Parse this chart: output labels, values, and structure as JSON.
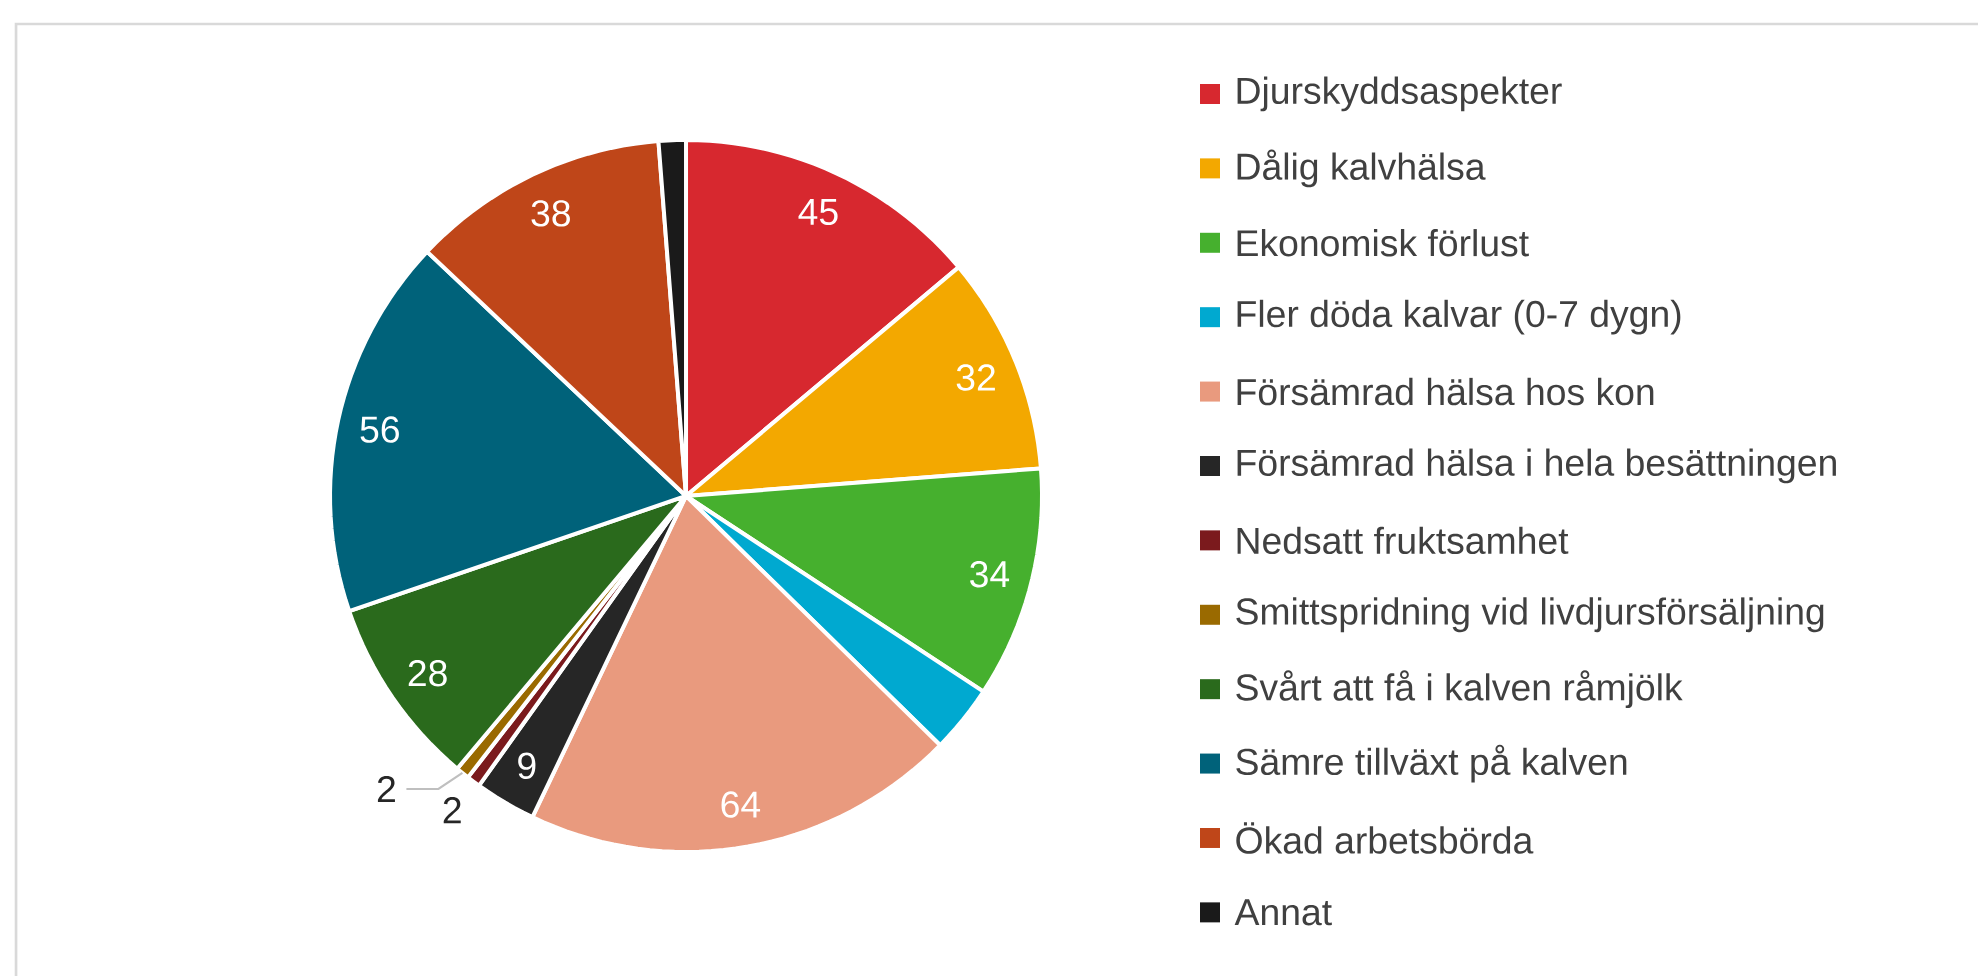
{
  "chart_data": {
    "type": "pie",
    "categories": [
      "Djurskyddsaspekter",
      "Dålig kalvhälsa",
      "Ekonomisk förlust",
      "Fler döda kalvar (0-7 dygn)",
      "Försämrad hälsa hos kon",
      "Försämrad hälsa i hela besättningen",
      "Nedsatt fruktsamhet",
      "Smittspridning vid livdjursförsäljning",
      "Svårt att få i kalven råmjölk",
      "Sämre tillväxt på kalven",
      "Ökad arbetsbörda",
      "Annat"
    ],
    "values": [
      45,
      32,
      34,
      10,
      64,
      9,
      2,
      2,
      28,
      56,
      38,
      4
    ],
    "value_labels": [
      "45",
      "32",
      "34",
      null,
      "64",
      "9",
      "2",
      "2",
      "28",
      "56",
      "38",
      null
    ],
    "colors": [
      "#d7282f",
      "#f3a800",
      "#46b02e",
      "#00a9d0",
      "#e99a7e",
      "#262626",
      "#7b1a1d",
      "#9a6a00",
      "#2a6a1c",
      "#00627a",
      "#bf4619",
      "#1a1a1a"
    ],
    "legend": "right"
  }
}
